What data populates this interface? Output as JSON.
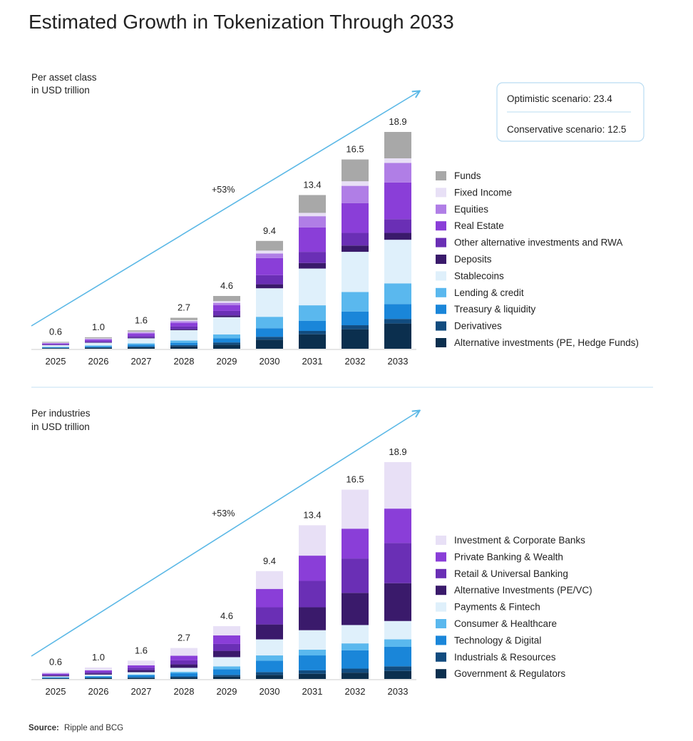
{
  "title": "Estimated Growth in Tokenization Through 2033",
  "source_label": "Source:",
  "source_text": "Ripple and BCG",
  "scenarios": {
    "optimistic": "Optimistic scenario: 23.4",
    "conservative": "Conservative scenario: 12.5"
  },
  "colors": {
    "axis": "#cccccc",
    "arrow": "#5bb8e6",
    "divider": "#cfe6f5",
    "box_border": "#b9dcf2"
  },
  "chart_data": [
    {
      "type": "bar",
      "stacked": true,
      "subtitle": [
        "Per asset class",
        "in USD trillion"
      ],
      "growth_label": "+53%",
      "categories": [
        "2025",
        "2026",
        "2027",
        "2028",
        "2029",
        "2030",
        "2031",
        "2032",
        "2033"
      ],
      "totals": [
        0.6,
        1.0,
        1.6,
        2.7,
        4.6,
        9.4,
        13.4,
        16.5,
        18.9
      ],
      "total_labels": [
        "0.6",
        "1.0",
        "1.6",
        "2.7",
        "4.6",
        "9.4",
        "13.4",
        "16.5",
        "18.9"
      ],
      "ylim": [
        0,
        20
      ],
      "series": [
        {
          "name": "Alternative investments (PE, Hedge Funds)",
          "color": "#0b2f4e",
          "values": [
            0.05,
            0.08,
            0.12,
            0.2,
            0.35,
            0.8,
            1.3,
            1.7,
            2.2
          ]
        },
        {
          "name": "Derivatives",
          "color": "#124c7f",
          "values": [
            0.03,
            0.05,
            0.08,
            0.12,
            0.2,
            0.25,
            0.3,
            0.35,
            0.4
          ]
        },
        {
          "name": "Treasury & liquidity",
          "color": "#1a86d9",
          "values": [
            0.05,
            0.08,
            0.15,
            0.2,
            0.35,
            0.75,
            0.9,
            1.2,
            1.3
          ]
        },
        {
          "name": "Lending & credit",
          "color": "#5ab8ee",
          "values": [
            0.04,
            0.07,
            0.12,
            0.2,
            0.35,
            1.0,
            1.4,
            1.7,
            1.8
          ]
        },
        {
          "name": "Stablecoins",
          "color": "#dff0fb",
          "values": [
            0.15,
            0.25,
            0.45,
            0.9,
            1.5,
            2.5,
            3.3,
            3.5,
            3.8
          ]
        },
        {
          "name": "Deposits",
          "color": "#3a1a6b",
          "values": [
            0.02,
            0.03,
            0.05,
            0.08,
            0.15,
            0.35,
            0.5,
            0.55,
            0.6
          ]
        },
        {
          "name": "Other alternative investments and RWA",
          "color": "#6a2fb5",
          "values": [
            0.05,
            0.1,
            0.15,
            0.25,
            0.4,
            0.8,
            1.0,
            1.1,
            1.2
          ]
        },
        {
          "name": "Real Estate",
          "color": "#8a3ed8",
          "values": [
            0.08,
            0.12,
            0.2,
            0.3,
            0.5,
            1.5,
            2.2,
            2.6,
            3.2
          ]
        },
        {
          "name": "Equities",
          "color": "#b07ee6",
          "values": [
            0.05,
            0.08,
            0.12,
            0.15,
            0.2,
            0.4,
            1.0,
            1.5,
            1.7
          ]
        },
        {
          "name": "Fixed Income",
          "color": "#e8e0f6",
          "values": [
            0.03,
            0.05,
            0.06,
            0.1,
            0.15,
            0.25,
            0.3,
            0.4,
            0.4
          ]
        },
        {
          "name": "Funds",
          "color": "#a8a8a8",
          "values": [
            0.07,
            0.09,
            0.12,
            0.2,
            0.45,
            0.85,
            1.6,
            1.9,
            2.3
          ]
        }
      ]
    },
    {
      "type": "bar",
      "stacked": true,
      "subtitle": [
        "Per industries",
        "in USD trillion"
      ],
      "growth_label": "+53%",
      "categories": [
        "2025",
        "2026",
        "2027",
        "2028",
        "2029",
        "2030",
        "2031",
        "2032",
        "2033"
      ],
      "totals": [
        0.6,
        1.0,
        1.6,
        2.7,
        4.6,
        9.4,
        13.4,
        16.5,
        18.9
      ],
      "total_labels": [
        "0.6",
        "1.0",
        "1.6",
        "2.7",
        "4.6",
        "9.4",
        "13.4",
        "16.5",
        "18.9"
      ],
      "ylim": [
        0,
        20
      ],
      "series": [
        {
          "name": "Government & Regulators",
          "color": "#0b2f4e",
          "values": [
            0.04,
            0.06,
            0.08,
            0.12,
            0.2,
            0.35,
            0.45,
            0.55,
            0.7
          ]
        },
        {
          "name": "Industrials & Resources",
          "color": "#124c7f",
          "values": [
            0.03,
            0.05,
            0.07,
            0.1,
            0.15,
            0.25,
            0.3,
            0.35,
            0.4
          ]
        },
        {
          "name": "Technology & Digital",
          "color": "#1a86d9",
          "values": [
            0.06,
            0.1,
            0.16,
            0.28,
            0.5,
            1.0,
            1.3,
            1.6,
            1.7
          ]
        },
        {
          "name": "Consumer & Healthcare",
          "color": "#5ab8ee",
          "values": [
            0.03,
            0.05,
            0.08,
            0.12,
            0.25,
            0.45,
            0.5,
            0.6,
            0.65
          ]
        },
        {
          "name": "Payments & Fintech",
          "color": "#dff0fb",
          "values": [
            0.07,
            0.12,
            0.2,
            0.35,
            0.8,
            1.4,
            1.7,
            1.6,
            1.6
          ]
        },
        {
          "name": "Alternative Investments (PE/VC)",
          "color": "#3a1a6b",
          "values": [
            0.06,
            0.1,
            0.18,
            0.3,
            0.55,
            1.3,
            2.0,
            2.8,
            3.3
          ]
        },
        {
          "name": "Retail & Universal Banking",
          "color": "#6a2fb5",
          "values": [
            0.08,
            0.12,
            0.2,
            0.35,
            0.6,
            1.5,
            2.3,
            3.0,
            3.5
          ]
        },
        {
          "name": "Private Banking & Wealth",
          "color": "#8a3ed8",
          "values": [
            0.1,
            0.15,
            0.22,
            0.4,
            0.75,
            1.6,
            2.2,
            2.6,
            3.0
          ]
        },
        {
          "name": "Investment & Corporate Banks",
          "color": "#e8e0f6",
          "values": [
            0.13,
            0.25,
            0.41,
            0.68,
            0.8,
            1.55,
            2.65,
            3.4,
            4.05
          ]
        }
      ]
    }
  ]
}
